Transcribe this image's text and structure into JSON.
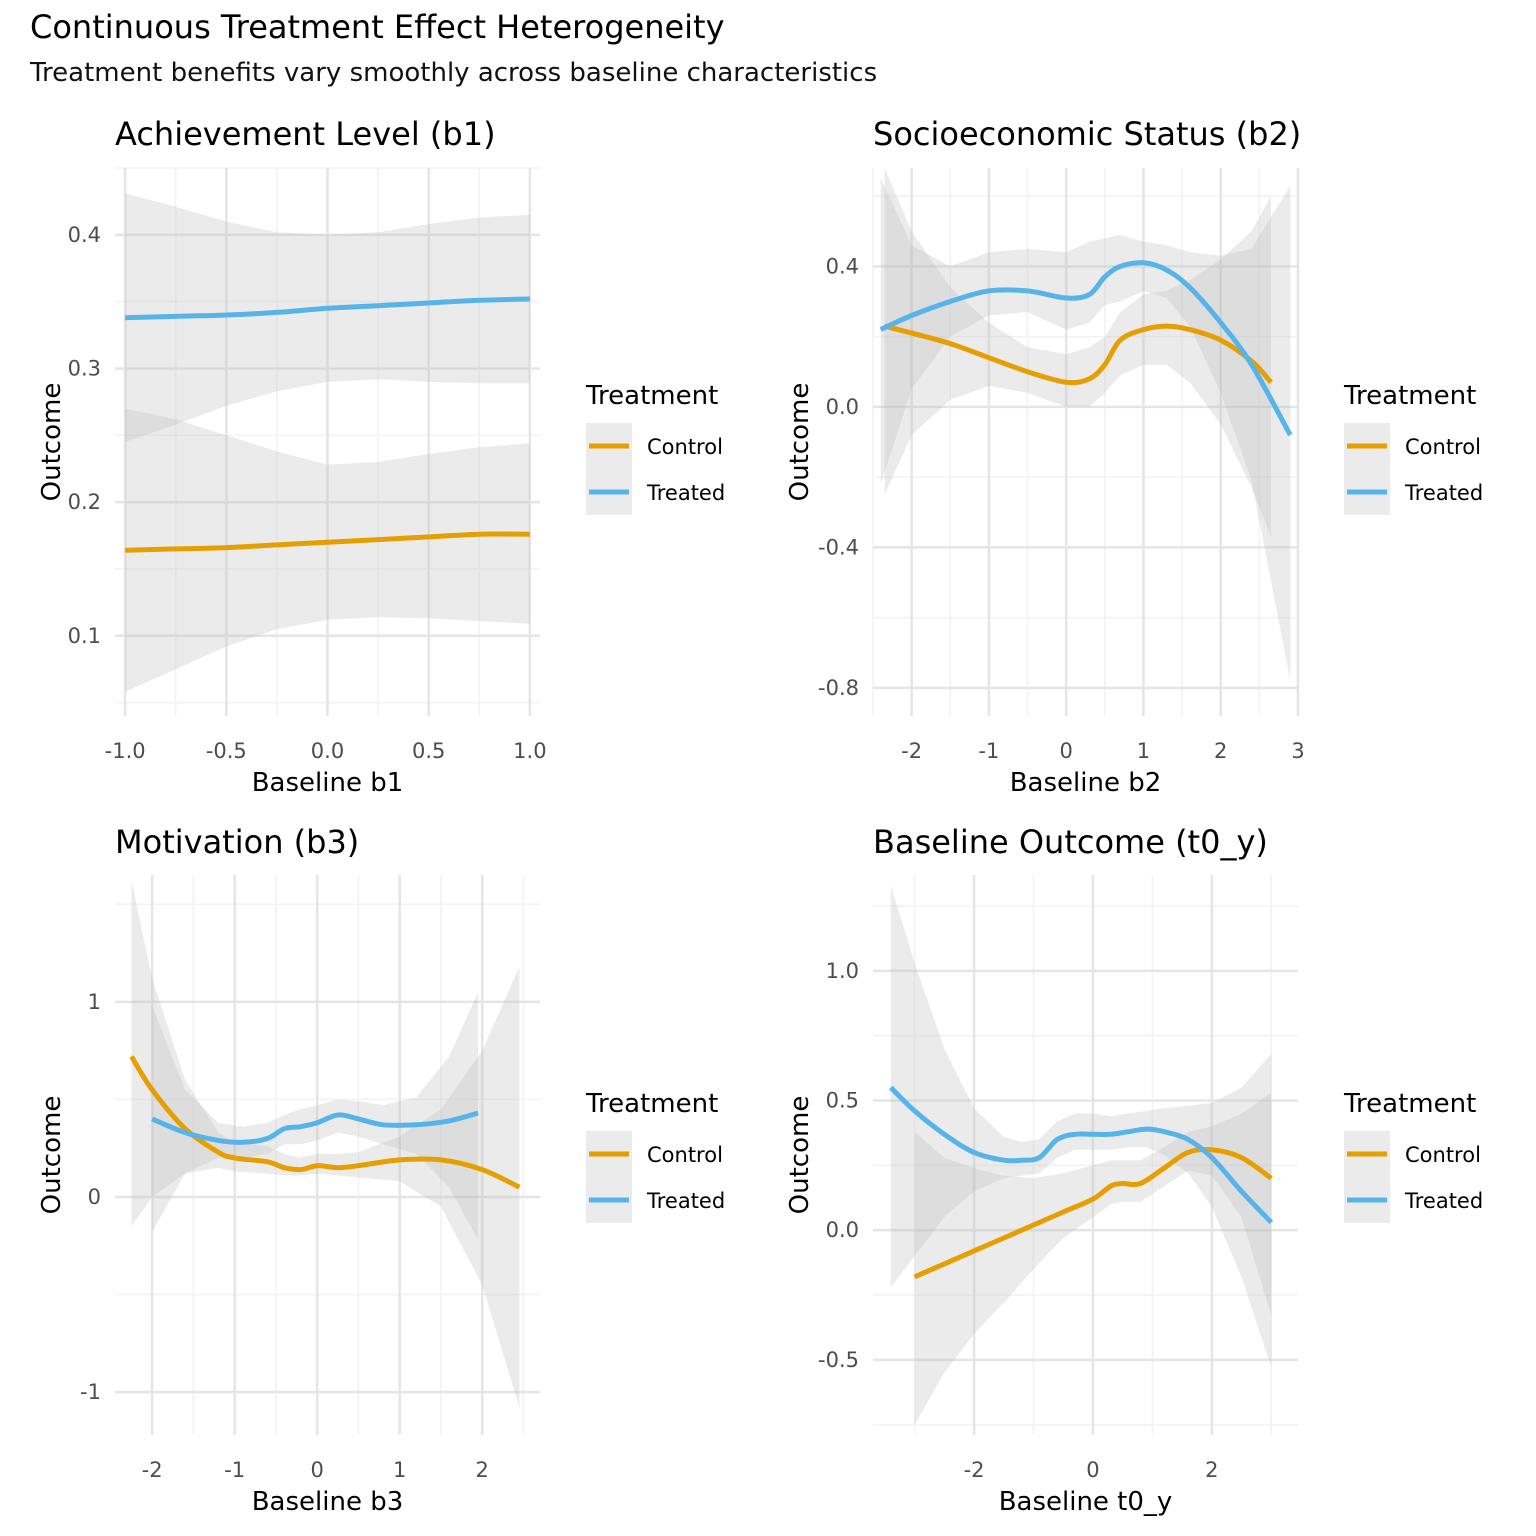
{
  "title": "Continuous Treatment Effect Heterogeneity",
  "subtitle": "Treatment benefits vary smoothly across baseline characteristics",
  "colors": {
    "Control": "#E69F00",
    "Treated": "#56B4E9",
    "ribbon": "#bdbdbd",
    "grid_major": "#e5e5e5",
    "grid_minor": "#f2f2f2"
  },
  "chart_data": [
    {
      "type": "line",
      "title": "Achievement Level (b1)",
      "xlabel": "Baseline b1",
      "ylabel": "Outcome",
      "xlim": [
        -1.05,
        1.05
      ],
      "ylim": [
        0.04,
        0.45
      ],
      "xticks": [
        -1.0,
        -0.5,
        0.0,
        0.5,
        1.0
      ],
      "xtick_labels": [
        "-1.0",
        "-0.5",
        "0.0",
        "0.5",
        "1.0"
      ],
      "yticks": [
        0.1,
        0.2,
        0.3,
        0.4
      ],
      "ytick_labels": [
        "0.1",
        "0.2",
        "0.3",
        "0.4"
      ],
      "grid": true,
      "legend": {
        "title": "Treatment",
        "position": "right",
        "entries": [
          "Control",
          "Treated"
        ]
      },
      "series": [
        {
          "name": "Control",
          "x": [
            -1.0,
            -0.75,
            -0.5,
            -0.25,
            0.0,
            0.25,
            0.5,
            0.75,
            1.0
          ],
          "y": [
            0.164,
            0.165,
            0.166,
            0.168,
            0.17,
            0.172,
            0.174,
            0.176,
            0.176
          ],
          "lower": [
            0.058,
            0.075,
            0.092,
            0.105,
            0.112,
            0.114,
            0.113,
            0.111,
            0.109
          ],
          "upper": [
            0.27,
            0.262,
            0.25,
            0.238,
            0.228,
            0.23,
            0.236,
            0.241,
            0.244
          ]
        },
        {
          "name": "Treated",
          "x": [
            -1.0,
            -0.75,
            -0.5,
            -0.25,
            0.0,
            0.25,
            0.5,
            0.75,
            1.0
          ],
          "y": [
            0.338,
            0.339,
            0.34,
            0.342,
            0.345,
            0.347,
            0.349,
            0.351,
            0.352
          ],
          "lower": [
            0.245,
            0.258,
            0.272,
            0.283,
            0.29,
            0.292,
            0.29,
            0.289,
            0.289
          ],
          "upper": [
            0.431,
            0.421,
            0.41,
            0.402,
            0.4,
            0.402,
            0.408,
            0.413,
            0.415
          ]
        }
      ]
    },
    {
      "type": "line",
      "title": "Socioeconomic Status (b2)",
      "xlabel": "Baseline b2",
      "ylabel": "Outcome",
      "xlim": [
        -2.5,
        3.0
      ],
      "ylim": [
        -0.88,
        0.68
      ],
      "xticks": [
        -2,
        -1,
        0,
        1,
        2,
        3
      ],
      "xtick_labels": [
        "-2",
        "-1",
        "0",
        "1",
        "2",
        "3"
      ],
      "yticks": [
        -0.8,
        -0.4,
        0.0,
        0.4
      ],
      "ytick_labels": [
        "-0.8",
        "-0.4",
        "0.0",
        "0.4"
      ],
      "grid": true,
      "legend": {
        "title": "Treatment",
        "position": "right",
        "entries": [
          "Control",
          "Treated"
        ]
      },
      "series": [
        {
          "name": "Control",
          "x": [
            -2.35,
            -2.0,
            -1.5,
            -1.0,
            -0.5,
            0.0,
            0.3,
            0.5,
            0.7,
            1.0,
            1.3,
            1.6,
            2.0,
            2.4,
            2.65
          ],
          "y": [
            0.23,
            0.21,
            0.18,
            0.14,
            0.1,
            0.07,
            0.08,
            0.12,
            0.19,
            0.22,
            0.23,
            0.22,
            0.19,
            0.13,
            0.07
          ],
          "lower": [
            -0.25,
            -0.08,
            0.02,
            0.06,
            0.04,
            0.0,
            0.0,
            0.04,
            0.09,
            0.12,
            0.12,
            0.07,
            -0.05,
            -0.23,
            -0.37
          ],
          "upper": [
            0.68,
            0.5,
            0.34,
            0.24,
            0.17,
            0.15,
            0.17,
            0.2,
            0.27,
            0.32,
            0.33,
            0.36,
            0.42,
            0.5,
            0.6
          ]
        },
        {
          "name": "Treated",
          "x": [
            -2.4,
            -2.0,
            -1.5,
            -1.0,
            -0.5,
            0.0,
            0.3,
            0.5,
            0.7,
            1.0,
            1.3,
            1.6,
            2.0,
            2.4,
            2.9
          ],
          "y": [
            0.22,
            0.26,
            0.3,
            0.33,
            0.33,
            0.31,
            0.32,
            0.37,
            0.4,
            0.41,
            0.39,
            0.34,
            0.24,
            0.12,
            -0.08
          ],
          "lower": [
            -0.22,
            0.05,
            0.2,
            0.26,
            0.27,
            0.22,
            0.24,
            0.29,
            0.3,
            0.33,
            0.31,
            0.23,
            0.04,
            -0.21,
            -0.78
          ],
          "upper": [
            0.65,
            0.46,
            0.4,
            0.44,
            0.45,
            0.44,
            0.47,
            0.48,
            0.49,
            0.47,
            0.46,
            0.44,
            0.43,
            0.45,
            0.63
          ]
        }
      ]
    },
    {
      "type": "line",
      "title": "Motivation (b3)",
      "xlabel": "Baseline b3",
      "ylabel": "Outcome",
      "xlim": [
        -2.45,
        2.7
      ],
      "ylim": [
        -1.22,
        1.65
      ],
      "xticks": [
        -2,
        -1,
        0,
        1,
        2
      ],
      "xtick_labels": [
        "-2",
        "-1",
        "0",
        "1",
        "2"
      ],
      "yticks": [
        -1,
        0,
        1
      ],
      "ytick_labels": [
        "-1",
        "0",
        "1"
      ],
      "grid": true,
      "legend": {
        "title": "Treatment",
        "position": "right",
        "entries": [
          "Control",
          "Treated"
        ]
      },
      "series": [
        {
          "name": "Control",
          "x": [
            -2.25,
            -2.0,
            -1.6,
            -1.2,
            -1.0,
            -0.6,
            -0.4,
            -0.2,
            0.0,
            0.25,
            0.5,
            1.0,
            1.5,
            2.0,
            2.45
          ],
          "y": [
            0.72,
            0.55,
            0.35,
            0.23,
            0.2,
            0.18,
            0.15,
            0.14,
            0.16,
            0.15,
            0.16,
            0.19,
            0.19,
            0.14,
            0.05
          ],
          "lower": [
            -0.15,
            0.0,
            0.12,
            0.15,
            0.13,
            0.12,
            0.11,
            0.11,
            0.12,
            0.11,
            0.1,
            0.08,
            -0.05,
            -0.45,
            -1.08
          ],
          "upper": [
            1.62,
            1.12,
            0.6,
            0.33,
            0.28,
            0.26,
            0.22,
            0.2,
            0.22,
            0.22,
            0.23,
            0.31,
            0.45,
            0.75,
            1.18
          ]
        },
        {
          "name": "Treated",
          "x": [
            -2.0,
            -1.6,
            -1.2,
            -0.9,
            -0.6,
            -0.4,
            -0.2,
            0.0,
            0.25,
            0.5,
            0.8,
            1.2,
            1.6,
            1.95
          ],
          "y": [
            0.4,
            0.33,
            0.29,
            0.28,
            0.3,
            0.35,
            0.36,
            0.38,
            0.42,
            0.4,
            0.37,
            0.37,
            0.39,
            0.43
          ],
          "lower": [
            -0.18,
            0.12,
            0.2,
            0.2,
            0.22,
            0.27,
            0.27,
            0.29,
            0.33,
            0.31,
            0.27,
            0.22,
            0.05,
            -0.22
          ],
          "upper": [
            0.98,
            0.55,
            0.38,
            0.36,
            0.38,
            0.42,
            0.45,
            0.47,
            0.5,
            0.49,
            0.47,
            0.51,
            0.72,
            1.05
          ]
        }
      ]
    },
    {
      "type": "line",
      "title": "Baseline Outcome (t0_y)",
      "xlabel": "Baseline t0_y",
      "ylabel": "Outcome",
      "xlim": [
        -3.7,
        3.45
      ],
      "ylim": [
        -0.79,
        1.37
      ],
      "xticks": [
        -2,
        0,
        2
      ],
      "xtick_labels": [
        "-2",
        "0",
        "2"
      ],
      "yticks": [
        -0.5,
        0.0,
        0.5,
        1.0
      ],
      "ytick_labels": [
        "-0.5",
        "0.0",
        "0.5",
        "1.0"
      ],
      "grid": true,
      "legend": {
        "title": "Treatment",
        "position": "right",
        "entries": [
          "Control",
          "Treated"
        ]
      },
      "series": [
        {
          "name": "Control",
          "x": [
            -3.0,
            -2.5,
            -2.0,
            -1.5,
            -1.0,
            -0.5,
            0.0,
            0.3,
            0.5,
            0.8,
            1.2,
            1.6,
            2.0,
            2.5,
            3.0
          ],
          "y": [
            -0.18,
            -0.13,
            -0.08,
            -0.03,
            0.02,
            0.07,
            0.12,
            0.17,
            0.18,
            0.18,
            0.24,
            0.3,
            0.31,
            0.28,
            0.2
          ],
          "lower": [
            -0.75,
            -0.55,
            -0.4,
            -0.28,
            -0.15,
            -0.03,
            0.05,
            0.1,
            0.11,
            0.11,
            0.17,
            0.23,
            0.21,
            0.05,
            -0.33
          ],
          "upper": [
            0.38,
            0.28,
            0.24,
            0.21,
            0.2,
            0.22,
            0.25,
            0.27,
            0.27,
            0.27,
            0.32,
            0.38,
            0.4,
            0.45,
            0.53
          ]
        },
        {
          "name": "Treated",
          "x": [
            -3.4,
            -3.0,
            -2.5,
            -2.0,
            -1.5,
            -1.2,
            -0.9,
            -0.6,
            -0.3,
            0.0,
            0.3,
            0.6,
            0.9,
            1.2,
            1.6,
            2.0,
            2.5,
            3.0
          ],
          "y": [
            0.55,
            0.46,
            0.37,
            0.3,
            0.27,
            0.27,
            0.28,
            0.35,
            0.37,
            0.37,
            0.37,
            0.38,
            0.39,
            0.38,
            0.35,
            0.28,
            0.15,
            0.03
          ],
          "lower": [
            -0.22,
            -0.1,
            0.05,
            0.15,
            0.2,
            0.21,
            0.22,
            0.28,
            0.31,
            0.31,
            0.31,
            0.32,
            0.32,
            0.29,
            0.22,
            0.09,
            -0.18,
            -0.53
          ],
          "upper": [
            1.33,
            1.03,
            0.7,
            0.47,
            0.36,
            0.34,
            0.35,
            0.42,
            0.45,
            0.45,
            0.44,
            0.45,
            0.46,
            0.47,
            0.48,
            0.49,
            0.55,
            0.68
          ]
        }
      ]
    }
  ]
}
